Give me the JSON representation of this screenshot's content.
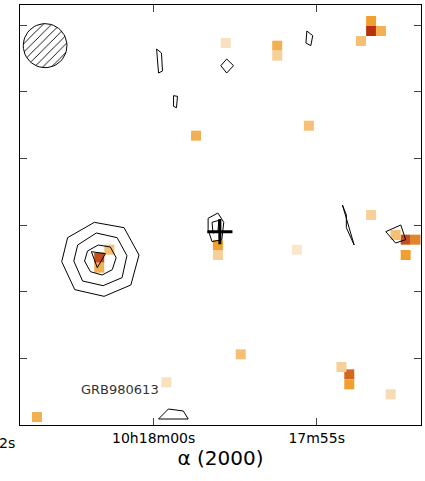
{
  "chart_data": {
    "type": "image",
    "xlabel": "α (2000)",
    "xlim": [
      64.1,
      51.8
    ],
    "xticks": [
      {
        "value": 60,
        "label": "10h18m00s"
      },
      {
        "value": 55,
        "label": "17m55s"
      }
    ],
    "ylim": [
      -30,
      33
    ],
    "yticks": [
      -20,
      -10,
      0,
      10,
      20,
      30
    ],
    "tick_labels": "x",
    "color_range": [
      0,
      1
    ],
    "pixels": {
      "x": [
        53.33,
        53.33,
        53.03,
        53.64,
        56.21,
        56.21,
        57.79,
        58.7,
        55.24,
        53.33,
        52.27,
        51.97,
        52.27,
        52.58,
        61.67,
        61.67,
        61.36,
        58.03,
        58.03,
        57.33,
        54.0,
        54.0,
        54.24,
        59.61,
        63.58,
        52.73,
        55.61
      ],
      "y": [
        29.1,
        30.6,
        29.1,
        27.6,
        26.9,
        25.4,
        27.3,
        13.4,
        14.9,
        1.5,
        -2.2,
        -2.2,
        -4.5,
        -1.5,
        -4.9,
        -6.4,
        -3.7,
        -3.0,
        -4.5,
        -19.4,
        -22.4,
        -23.9,
        -21.3,
        -23.6,
        -28.8,
        -25.4,
        -3.7
      ],
      "values": [
        1.0,
        0.6,
        0.5,
        0.4,
        0.5,
        0.3,
        0.15,
        0.5,
        0.4,
        0.3,
        0.9,
        0.7,
        0.6,
        0.4,
        0.9,
        0.5,
        0.4,
        0.6,
        0.3,
        0.4,
        0.8,
        0.6,
        0.3,
        0.15,
        0.5,
        0.2,
        0.1
      ]
    },
    "contours": [
      {
        "x": [
          62.82,
          62.64,
          61.82,
          60.91,
          60.45,
          60.7,
          61.52,
          62.42
        ],
        "y": [
          -5.5,
          -1.9,
          0.4,
          -0.4,
          -4.5,
          -9.0,
          -10.7,
          -9.7
        ]
      },
      {
        "x": [
          62.45,
          62.33,
          61.76,
          61.12,
          60.82,
          60.97,
          61.55,
          62.18
        ],
        "y": [
          -5.4,
          -3.0,
          -1.2,
          -1.9,
          -4.6,
          -7.9,
          -9.1,
          -8.4
        ]
      },
      {
        "x": [
          62.12,
          62.03,
          61.7,
          61.33,
          61.15,
          61.27,
          61.58,
          61.94
        ],
        "y": [
          -5.4,
          -3.9,
          -3.0,
          -3.3,
          -4.9,
          -6.7,
          -7.5,
          -7.0
        ]
      },
      {
        "x": [
          61.91,
          61.48,
          61.73
        ],
        "y": [
          -4.0,
          -4.3,
          -6.4
        ]
      },
      {
        "x": [
          58.33,
          58.03,
          57.85,
          57.91,
          58.21,
          58.33
        ],
        "y": [
          1.0,
          1.8,
          0.4,
          -2.2,
          -2.5,
          -0.7
        ]
      },
      {
        "x": [
          58.21,
          58.0,
          58.03,
          58.18
        ],
        "y": [
          0.4,
          0.7,
          -1.0,
          -1.2
        ]
      },
      {
        "x": [
          59.91,
          59.76,
          59.73,
          59.85
        ],
        "y": [
          26.4,
          25.8,
          23.1,
          22.8
        ]
      },
      {
        "x": [
          57.94,
          57.76,
          57.55,
          57.76
        ],
        "y": [
          23.9,
          24.9,
          23.9,
          22.8
        ]
      },
      {
        "x": [
          59.39,
          59.27,
          59.3,
          59.39
        ],
        "y": [
          19.4,
          19.3,
          17.6,
          17.8
        ]
      },
      {
        "x": [
          55.3,
          55.12,
          55.18,
          55.33
        ],
        "y": [
          29.1,
          28.4,
          26.9,
          27.3
        ]
      },
      {
        "x": [
          54.21,
          54.09,
          54.09,
          53.85
        ],
        "y": [
          3.0,
          1.5,
          -0.4,
          -3.0
        ]
      },
      {
        "x": [
          52.88,
          52.42,
          52.27,
          52.58
        ],
        "y": [
          -1.0,
          0.0,
          -2.2,
          -2.7
        ]
      },
      {
        "x": [
          59.85,
          59.55,
          59.09,
          58.94
        ],
        "y": [
          -29.1,
          -27.6,
          -27.9,
          -29.1
        ]
      }
    ],
    "marker_position": {
      "x": 57.97,
      "y": -1.0
    },
    "marker": "cross",
    "beam": {
      "x": 63.33,
      "y": 26.9,
      "rx": 0.67,
      "ry": 3.3
    },
    "annotations": [
      {
        "text": "GRB980613",
        "x": 61.03,
        "y": -24.6
      },
      {
        "text": "2s"
      }
    ]
  }
}
